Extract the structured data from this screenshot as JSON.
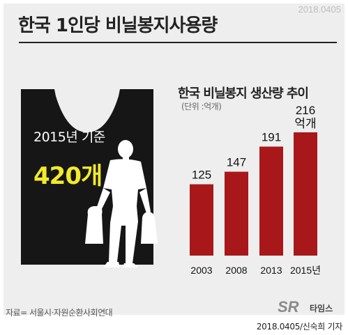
{
  "date_top": "2018.0405",
  "main_title": "한국 1인당 비닐봉지사용량",
  "infographic": {
    "year_label": "2015년 기준",
    "value_label": "420개"
  },
  "chart_data": {
    "type": "bar",
    "title": "한국 비닐봉지 생산량 추이",
    "unit_label": "(단위 :억개)",
    "categories": [
      "2003",
      "2008",
      "2013",
      "2015년"
    ],
    "values": [
      125,
      147,
      191,
      216
    ],
    "data_labels": [
      "125",
      "147",
      "191",
      "216"
    ],
    "last_value_suffix": "억개",
    "bar_color": "#a8181b",
    "ylim": [
      0,
      216
    ]
  },
  "source": "자료= 서울시·자원순환사회연대",
  "logo": {
    "mark": "SR",
    "text": "타임스"
  },
  "credit": "2018.0405/신숙희 기자"
}
